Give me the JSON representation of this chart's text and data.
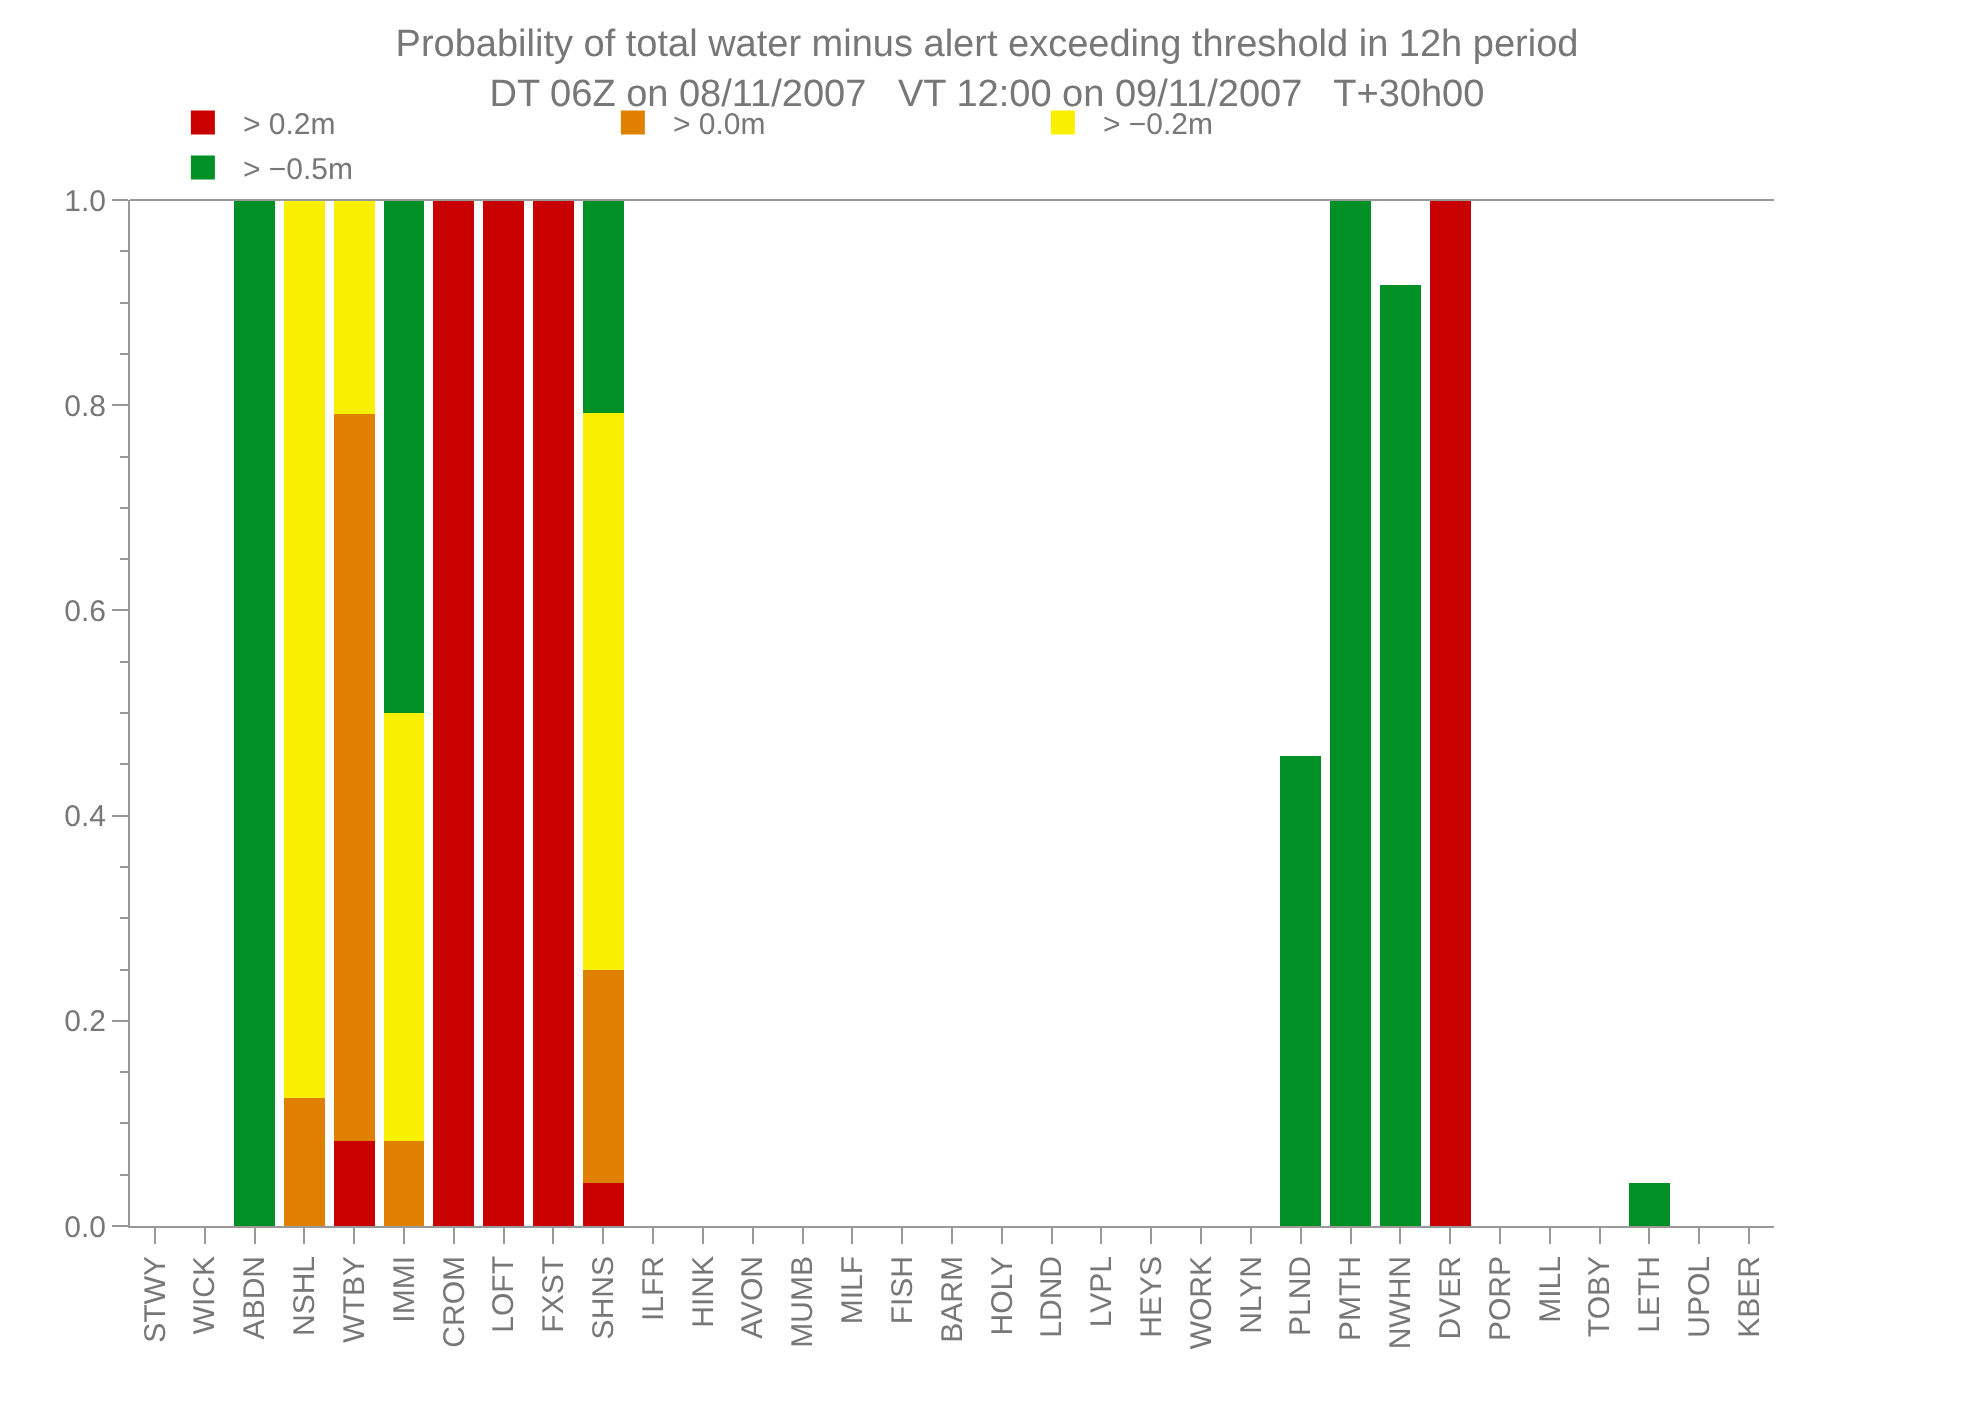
{
  "chart_data": {
    "type": "bar",
    "stacked": true,
    "title": "Probability of total water minus alert exceeding threshold in 12h period",
    "subtitle": "DT 06Z on 08/11/2007   VT 12:00 on 09/11/2007   T+30h00",
    "categories": [
      "STWY",
      "WICK",
      "ABDN",
      "NSHL",
      "WTBY",
      "IMMI",
      "CROM",
      "LOFT",
      "FXST",
      "SHNS",
      "ILFR",
      "HINK",
      "AVON",
      "MUMB",
      "MILF",
      "FISH",
      "BARM",
      "HOLY",
      "LDND",
      "LVPL",
      "HEYS",
      "WORK",
      "NLYN",
      "PLND",
      "PMTH",
      "NWHN",
      "DVER",
      "PORP",
      "MILL",
      "TOBY",
      "LETH",
      "UPOL",
      "KBER"
    ],
    "series": [
      {
        "name": "> 0.2m",
        "color": "#c80000",
        "values": [
          0,
          0,
          0,
          0,
          0.083,
          0,
          1,
          1,
          1,
          0.042,
          0,
          0,
          0,
          0,
          0,
          0,
          0,
          0,
          0,
          0,
          0,
          0,
          0,
          0,
          0,
          0,
          1,
          0,
          0,
          0,
          0,
          0,
          0
        ]
      },
      {
        "name": "> 0.0m",
        "color": "#e08000",
        "values": [
          0,
          0,
          0,
          0.125,
          0.708,
          0.083,
          0,
          0,
          0,
          0.208,
          0,
          0,
          0,
          0,
          0,
          0,
          0,
          0,
          0,
          0,
          0,
          0,
          0,
          0,
          0,
          0,
          0,
          0,
          0,
          0,
          0,
          0,
          0
        ]
      },
      {
        "name": "> −0.2m",
        "color": "#f8f000",
        "values": [
          0,
          0,
          0,
          0.875,
          0.209,
          0.417,
          0,
          0,
          0,
          0.542,
          0,
          0,
          0,
          0,
          0,
          0,
          0,
          0,
          0,
          0,
          0,
          0,
          0,
          0,
          0,
          0,
          0,
          0,
          0,
          0,
          0,
          0,
          0
        ]
      },
      {
        "name": "> −0.5m",
        "color": "#009025",
        "values": [
          0,
          0,
          1,
          0,
          0,
          0.5,
          0,
          0,
          0,
          0.208,
          0,
          0,
          0,
          0,
          0,
          0,
          0,
          0,
          0,
          0,
          0,
          0,
          0,
          0.458,
          1,
          0.917,
          0,
          0,
          0,
          0,
          0.042,
          0,
          0
        ]
      }
    ],
    "ylim": [
      0,
      1
    ],
    "yticks": [
      {
        "value": 0,
        "label": "0.0"
      },
      0.2,
      0.4,
      0.6,
      0.8,
      {
        "value": 1,
        "label": "1.0"
      }
    ],
    "grid": false,
    "legend": "top"
  }
}
